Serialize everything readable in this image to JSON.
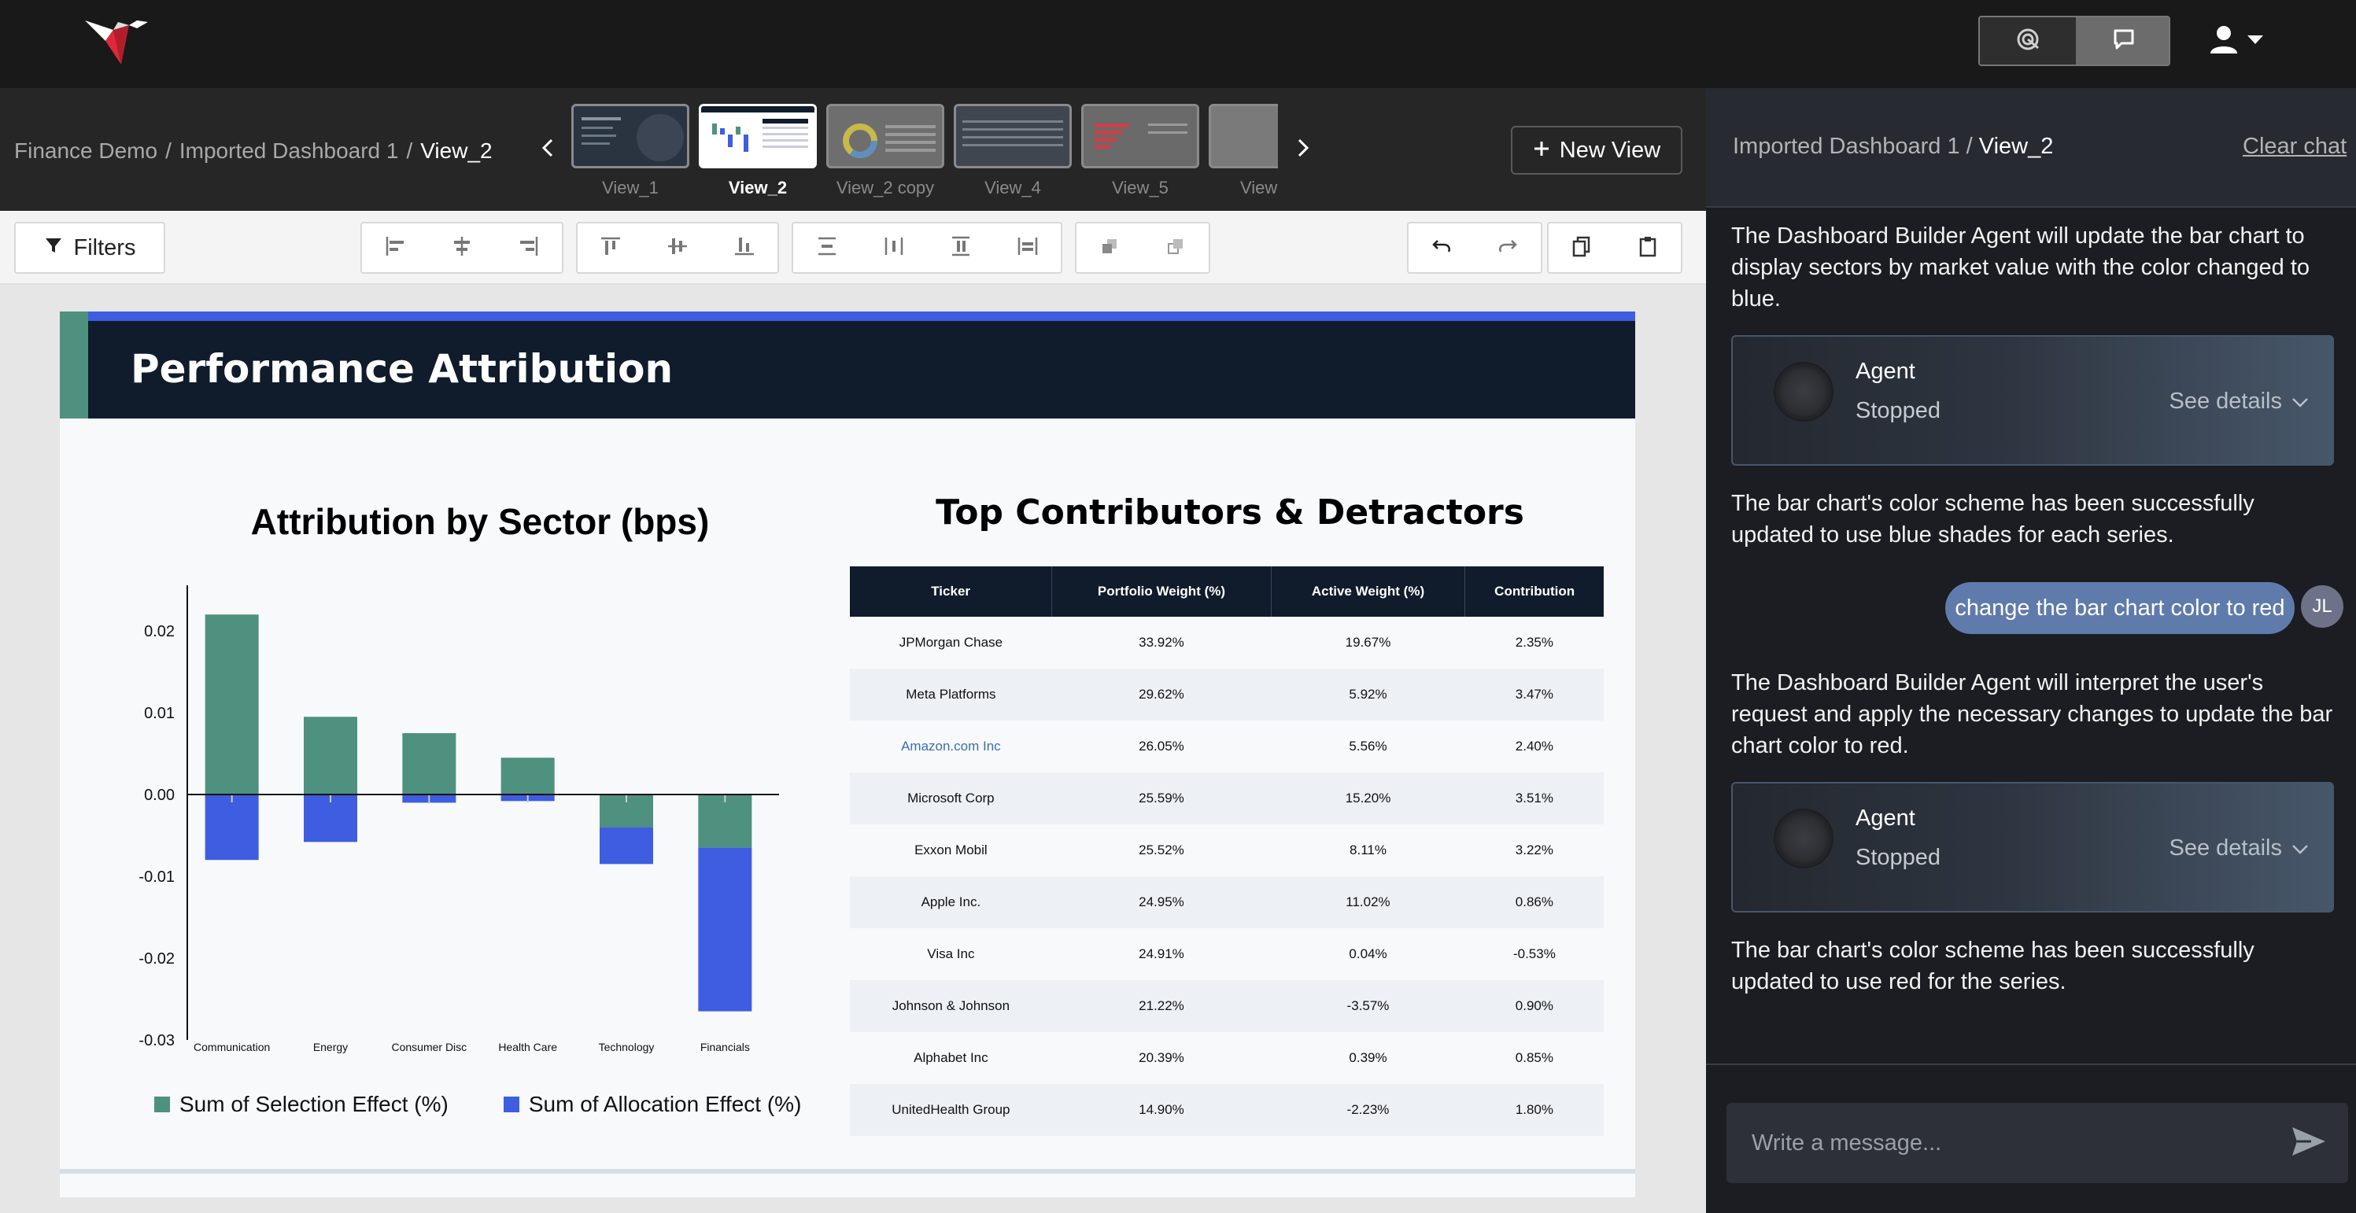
{
  "app": {
    "logo_name": "hummingbird-logo"
  },
  "header": {
    "breadcrumb": [
      "Finance Demo",
      "Imported Dashboard 1",
      "View_2"
    ],
    "new_view_label": "New View",
    "views": [
      {
        "label": "View_1",
        "active": false
      },
      {
        "label": "View_2",
        "active": true
      },
      {
        "label": "View_2 copy",
        "active": false
      },
      {
        "label": "View_4",
        "active": false
      },
      {
        "label": "View_5",
        "active": false
      },
      {
        "label": "View",
        "active": false
      }
    ]
  },
  "toolbar": {
    "filters_label": "Filters"
  },
  "dashboard": {
    "title": "Performance Attribution",
    "chart_title": "Attribution by Sector (bps)",
    "table_title": "Top Contributors & Detractors"
  },
  "chart_data": {
    "type": "bar",
    "stacked": true,
    "categories": [
      "Communication",
      "Energy",
      "Consumer Disc",
      "Health Care",
      "Technology",
      "Financials"
    ],
    "series": [
      {
        "name": "Sum of Selection Effect (%)",
        "color": "#4e917f",
        "values": [
          0.022,
          0.0095,
          0.0075,
          0.0045,
          -0.004,
          -0.0065
        ]
      },
      {
        "name": "Sum of Allocation Effect (%)",
        "color": "#3e5de0",
        "values": [
          -0.008,
          -0.0058,
          -0.001,
          -0.0008,
          -0.0045,
          -0.02
        ]
      }
    ],
    "yticks": [
      "0.02",
      "0.01",
      "0.00",
      "-0.01",
      "-0.02",
      "-0.03"
    ],
    "ylim": [
      -0.03,
      0.025
    ],
    "legend_position": "bottom"
  },
  "table": {
    "headers": [
      "Ticker",
      "Portfolio Weight (%)",
      "Active Weight (%)",
      "Contribution"
    ],
    "rows": [
      [
        "JPMorgan Chase",
        "33.92%",
        "19.67%",
        "2.35%"
      ],
      [
        "Meta Platforms",
        "29.62%",
        "5.92%",
        "3.47%"
      ],
      [
        "Amazon.com Inc",
        "26.05%",
        "5.56%",
        "2.40%"
      ],
      [
        "Microsoft Corp",
        "25.59%",
        "15.20%",
        "3.51%"
      ],
      [
        "Exxon Mobil",
        "25.52%",
        "8.11%",
        "3.22%"
      ],
      [
        "Apple Inc.",
        "24.95%",
        "11.02%",
        "0.86%"
      ],
      [
        "Visa Inc",
        "24.91%",
        "0.04%",
        "-0.53%"
      ],
      [
        "Johnson & Johnson",
        "21.22%",
        "-3.57%",
        "0.90%"
      ],
      [
        "Alphabet Inc",
        "20.39%",
        "0.39%",
        "0.85%"
      ],
      [
        "UnitedHealth Group",
        "14.90%",
        "-2.23%",
        "1.80%"
      ]
    ]
  },
  "chat": {
    "breadcrumb": [
      "Imported Dashboard 1",
      "View_2"
    ],
    "clear_label": "Clear chat",
    "msg1": "The Dashboard Builder Agent will update the bar chart to display sectors by market value with the color changed to blue.",
    "agent1": {
      "name": "Agent",
      "status": "Stopped",
      "details": "See details"
    },
    "msg2": "The bar chart's color scheme has been successfully updated to use blue shades for each series.",
    "user_msg": "change the bar chart color to red",
    "user_initials": "JL",
    "msg3": "The Dashboard Builder Agent will interpret the user's request and apply the necessary changes to update the bar chart color to red.",
    "agent2": {
      "name": "Agent",
      "status": "Stopped",
      "details": "See details"
    },
    "msg4": "The bar chart's color scheme has been successfully updated to use red for the series.",
    "input_placeholder": "Write a message..."
  }
}
